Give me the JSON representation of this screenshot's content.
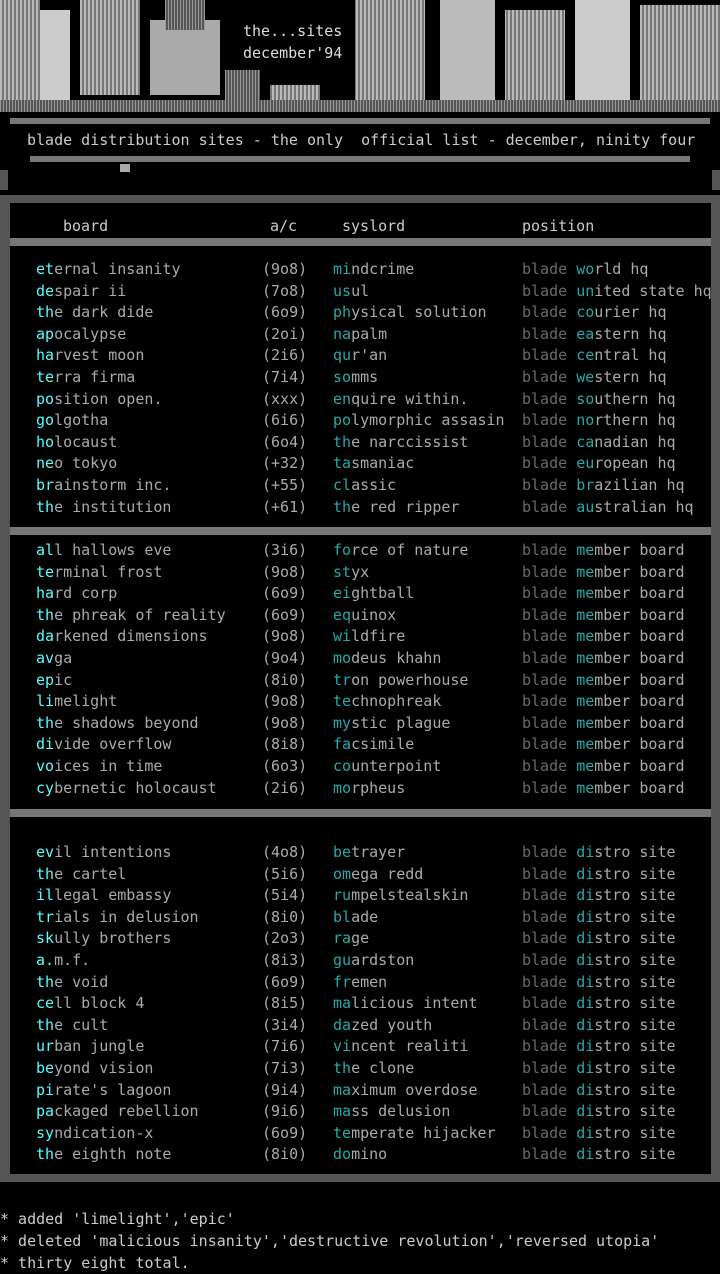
{
  "header": {
    "title1": "the...sites",
    "title2": "december'94",
    "subtitle": "blade distribution sites - the only  official list - december, ninity four"
  },
  "table": {
    "columns": [
      "board",
      "a/c",
      "syslord",
      "position"
    ],
    "groups": [
      [
        [
          "eternal insanity",
          "(9o8)",
          "mindcrime",
          "blade world hq"
        ],
        [
          "despair ii",
          "(7o8)",
          "usul",
          "blade united state hq"
        ],
        [
          "the dark dide",
          "(6o9)",
          "physical solution",
          "blade courier hq"
        ],
        [
          "apocalypse",
          "(2oi)",
          "napalm",
          "blade eastern hq"
        ],
        [
          "harvest moon",
          "(2i6)",
          "qur'an",
          "blade central hq"
        ],
        [
          "terra firma",
          "(7i4)",
          "somms",
          "blade western hq"
        ],
        [
          "position open.",
          "(xxx)",
          "enquire within.",
          "blade southern hq"
        ],
        [
          "golgotha",
          "(6i6)",
          "polymorphic assasin",
          "blade northern hq"
        ],
        [
          "holocaust",
          "(6o4)",
          "the narccissist",
          "blade canadian hq"
        ],
        [
          "neo tokyo",
          "(+32)",
          "tasmaniac",
          "blade european hq"
        ],
        [
          "brainstorm inc.",
          "(+55)",
          "classic",
          "blade brazilian hq"
        ],
        [
          "the institution",
          "(+61)",
          "the red ripper",
          "blade australian hq"
        ]
      ],
      [
        [
          "all hallows eve",
          "(3i6)",
          "force of nature",
          "blade member board"
        ],
        [
          "terminal frost",
          "(9o8)",
          "styx",
          "blade member board"
        ],
        [
          "hard corp",
          "(6o9)",
          "eightball",
          "blade member board"
        ],
        [
          "the phreak of reality",
          "(6o9)",
          "equinox",
          "blade member board"
        ],
        [
          "darkened dimensions",
          "(9o8)",
          "wildfire",
          "blade member board"
        ],
        [
          "avga",
          "(9o4)",
          "modeus khahn",
          "blade member board"
        ],
        [
          "epic",
          "(8i0)",
          "tron powerhouse",
          "blade member board"
        ],
        [
          "limelight",
          "(9o8)",
          "technophreak",
          "blade member board"
        ],
        [
          "the shadows beyond",
          "(9o8)",
          "mystic plague",
          "blade member board"
        ],
        [
          "divide overflow",
          "(8i8)",
          "facsimile",
          "blade member board"
        ],
        [
          "voices in time",
          "(6o3)",
          "counterpoint",
          "blade member board"
        ],
        [
          "cybernetic holocaust",
          "(2i6)",
          "morpheus",
          "blade member board"
        ]
      ],
      [
        [
          "evil intentions",
          "(4o8)",
          "betrayer",
          "blade distro site"
        ],
        [
          "the cartel",
          "(5i6)",
          "omega redd",
          "blade distro site"
        ],
        [
          "illegal embassy",
          "(5i4)",
          "rumpelstealskin",
          "blade distro site"
        ],
        [
          "trials in delusion",
          "(8i0)",
          "blade",
          "blade distro site"
        ],
        [
          "skully brothers",
          "(2o3)",
          "rage",
          "blade distro site"
        ],
        [
          "a.m.f.",
          "(8i3)",
          "guardston",
          "blade distro site"
        ],
        [
          "the void",
          "(6o9)",
          "fremen",
          "blade distro site"
        ],
        [
          "cell block 4",
          "(8i5)",
          "malicious intent",
          "blade distro site"
        ],
        [
          "the cult",
          "(3i4)",
          "dazed youth",
          "blade distro site"
        ],
        [
          "urban jungle",
          "(7i6)",
          "vincent realiti",
          "blade distro site"
        ],
        [
          "beyond vision",
          "(7i3)",
          "the clone",
          "blade distro site"
        ],
        [
          "pirate's lagoon",
          "(9i4)",
          "maximum overdose",
          "blade distro site"
        ],
        [
          "packaged rebellion",
          "(9i6)",
          "mass delusion",
          "blade distro site"
        ],
        [
          "syndication-x",
          "(6o9)",
          "temperate hijacker",
          "blade distro site"
        ],
        [
          "the eighth note",
          "(8i0)",
          "domino",
          "blade distro site"
        ]
      ]
    ]
  },
  "notes": [
    "* added 'limelight','epic'",
    "* deleted 'malicious insanity','destructive revolution','reversed utopia'",
    "* thirty eight total."
  ]
}
